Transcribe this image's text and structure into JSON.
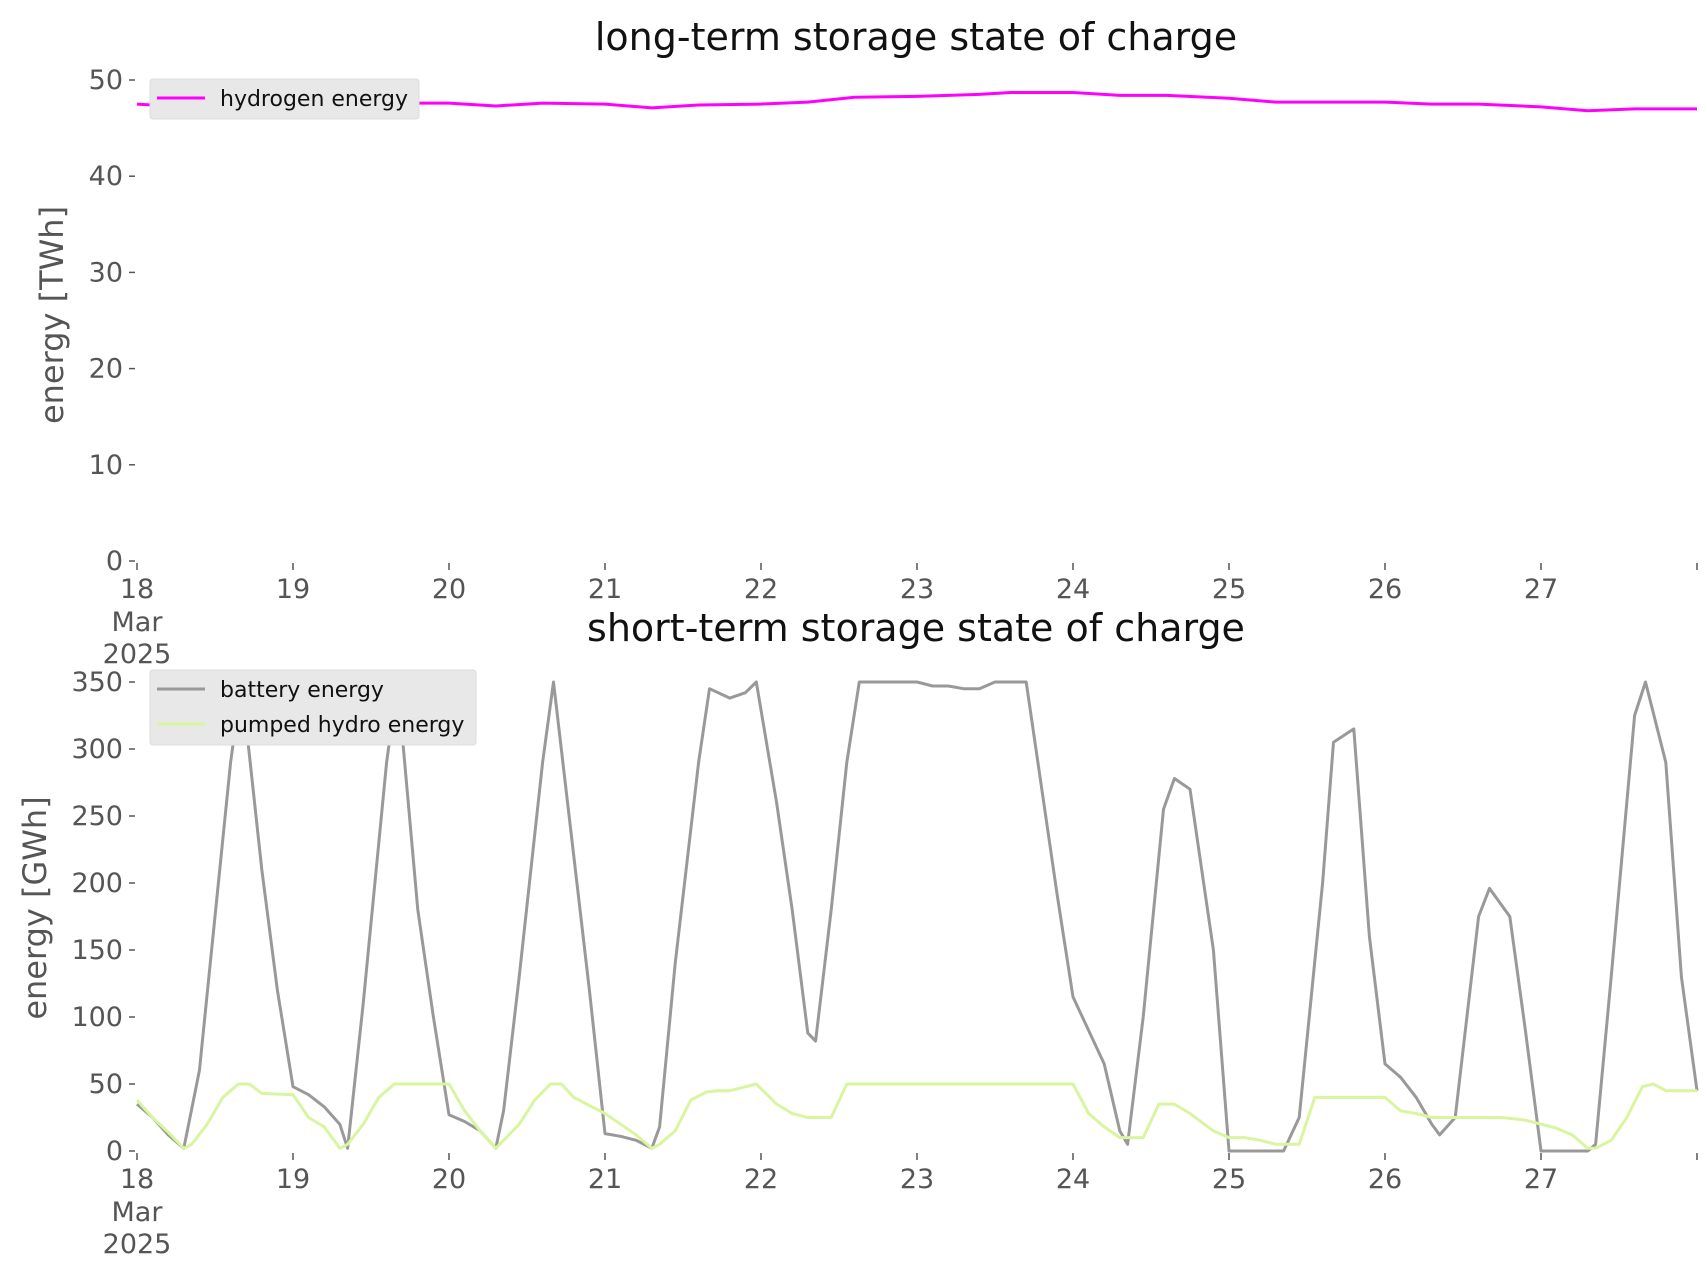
{
  "chart_data": [
    {
      "type": "line",
      "title": "long-term storage state of charge",
      "xlabel": "",
      "ylabel": "energy [TWh]",
      "x_ticks": [
        "18",
        "19",
        "20",
        "21",
        "22",
        "23",
        "24",
        "25",
        "26",
        "27"
      ],
      "x_tick_sublabel": [
        "Mar",
        "2025"
      ],
      "xlim_days": [
        18,
        28
      ],
      "ylim": [
        0,
        50
      ],
      "y_ticks": [
        "0",
        "10",
        "20",
        "30",
        "40",
        "50"
      ],
      "grid": false,
      "legend_position": "top-left",
      "x": [
        18,
        18.3,
        18.6,
        19,
        19.5,
        20,
        20.3,
        20.6,
        21,
        21.3,
        21.6,
        22,
        22.3,
        22.6,
        23,
        23.4,
        23.6,
        24,
        24.3,
        24.6,
        25,
        25.3,
        25.6,
        26,
        26.3,
        26.6,
        27,
        27.3,
        27.6,
        28
      ],
      "series": [
        {
          "name": "hydrogen energy",
          "color": "#ff00ff",
          "values": [
            47.5,
            47.2,
            47.3,
            47.5,
            47.6,
            47.6,
            47.3,
            47.6,
            47.5,
            47.1,
            47.4,
            47.5,
            47.7,
            48.2,
            48.3,
            48.5,
            48.7,
            48.7,
            48.4,
            48.4,
            48.1,
            47.7,
            47.7,
            47.7,
            47.5,
            47.5,
            47.2,
            46.8,
            47.0,
            47.0
          ]
        }
      ]
    },
    {
      "type": "line",
      "title": "short-term storage state of charge",
      "xlabel": "",
      "ylabel": "energy [GWh]",
      "x_ticks": [
        "18",
        "19",
        "20",
        "21",
        "22",
        "23",
        "24",
        "25",
        "26",
        "27"
      ],
      "x_tick_sublabel": [
        "Mar",
        "2025"
      ],
      "xlim_days": [
        18,
        28
      ],
      "ylim": [
        0,
        350
      ],
      "y_ticks": [
        "0",
        "50",
        "100",
        "150",
        "200",
        "250",
        "300",
        "350"
      ],
      "grid": false,
      "legend_position": "top-left",
      "series": [
        {
          "name": "battery energy",
          "color": "#999999",
          "x": [
            18,
            18.1,
            18.2,
            18.3,
            18.4,
            18.6,
            18.67,
            18.8,
            18.9,
            19,
            19.1,
            19.2,
            19.3,
            19.35,
            19.45,
            19.6,
            19.67,
            19.8,
            19.9,
            20,
            20.1,
            20.2,
            20.3,
            20.35,
            20.45,
            20.6,
            20.67,
            20.8,
            20.9,
            21,
            21.1,
            21.2,
            21.3,
            21.35,
            21.45,
            21.6,
            21.67,
            21.8,
            21.9,
            21.97,
            22.1,
            22.2,
            22.3,
            22.35,
            22.45,
            22.55,
            22.63,
            22.7,
            22.8,
            22.9,
            23.0,
            23.1,
            23.2,
            23.3,
            23.4,
            23.5,
            23.6,
            23.7,
            23.8,
            23.9,
            24.0,
            24.1,
            24.2,
            24.3,
            24.35,
            24.45,
            24.58,
            24.65,
            24.75,
            24.9,
            25.0,
            25.1,
            25.2,
            25.3,
            25.35,
            25.45,
            25.6,
            25.67,
            25.8,
            25.9,
            26.0,
            26.1,
            26.2,
            26.3,
            26.35,
            26.45,
            26.6,
            26.67,
            26.8,
            26.9,
            27.0,
            27.1,
            27.2,
            27.3,
            27.35,
            27.45,
            27.6,
            27.67,
            27.8,
            27.9,
            28
          ],
          "values": [
            35,
            25,
            12,
            2,
            60,
            290,
            350,
            210,
            120,
            48,
            42,
            33,
            20,
            2,
            110,
            290,
            350,
            180,
            100,
            27,
            22,
            15,
            2,
            30,
            130,
            290,
            350,
            220,
            120,
            13,
            11,
            8,
            2,
            18,
            140,
            290,
            345,
            338,
            342,
            350,
            260,
            180,
            88,
            82,
            180,
            290,
            350,
            350,
            350,
            350,
            350,
            347,
            347,
            345,
            345,
            350,
            350,
            350,
            270,
            190,
            115,
            90,
            65,
            15,
            5,
            100,
            255,
            278,
            270,
            150,
            0,
            0,
            0,
            0,
            0,
            25,
            200,
            305,
            315,
            160,
            65,
            55,
            40,
            20,
            12,
            25,
            175,
            196,
            175,
            90,
            0,
            0,
            0,
            0,
            5,
            130,
            325,
            350,
            290,
            130,
            45
          ]
        },
        {
          "name": "pumped hydro energy",
          "color": "#d9f5a0",
          "x": [
            18,
            18.1,
            18.2,
            18.3,
            18.35,
            18.45,
            18.55,
            18.65,
            18.72,
            18.8,
            19,
            19.1,
            19.2,
            19.3,
            19.35,
            19.45,
            19.55,
            19.65,
            19.72,
            19.8,
            20,
            20.1,
            20.2,
            20.3,
            20.35,
            20.45,
            20.55,
            20.65,
            20.72,
            20.8,
            21,
            21.1,
            21.2,
            21.3,
            21.35,
            21.45,
            21.55,
            21.65,
            21.72,
            21.8,
            21.97,
            22.1,
            22.2,
            22.3,
            22.35,
            22.45,
            22.55,
            22.63,
            22.8,
            23.0,
            23.5,
            23.9,
            24.0,
            24.1,
            24.2,
            24.3,
            24.35,
            24.45,
            24.55,
            24.65,
            24.75,
            24.9,
            25.0,
            25.1,
            25.2,
            25.3,
            25.35,
            25.45,
            25.55,
            25.65,
            25.75,
            25.9,
            26.0,
            26.1,
            26.2,
            26.3,
            26.35,
            26.45,
            26.55,
            26.65,
            26.75,
            26.9,
            27.0,
            27.1,
            27.2,
            27.3,
            27.35,
            27.45,
            27.55,
            27.65,
            27.72,
            27.8,
            28
          ],
          "values": [
            38,
            25,
            14,
            2,
            5,
            20,
            40,
            50,
            50,
            43,
            42,
            25,
            18,
            2,
            5,
            20,
            40,
            50,
            50,
            50,
            50,
            30,
            15,
            2,
            8,
            20,
            38,
            50,
            50,
            40,
            28,
            20,
            12,
            2,
            5,
            15,
            38,
            44,
            45,
            45,
            50,
            35,
            28,
            25,
            25,
            25,
            50,
            50,
            50,
            50,
            50,
            50,
            50,
            28,
            18,
            10,
            10,
            10,
            35,
            35,
            28,
            15,
            10,
            10,
            8,
            5,
            5,
            5,
            40,
            40,
            40,
            40,
            40,
            30,
            28,
            25,
            25,
            25,
            25,
            25,
            25,
            23,
            20,
            17,
            12,
            2,
            2,
            8,
            25,
            48,
            50,
            45,
            45
          ]
        }
      ]
    }
  ]
}
